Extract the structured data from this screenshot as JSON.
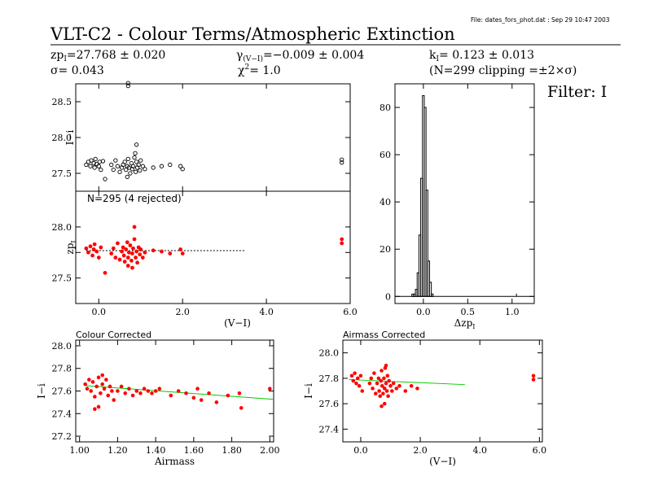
{
  "header": {
    "file_info": "File: dates_fors_phot.dat : Sep 29 10:47 2003",
    "title": "VLT-C2  -  Colour Terms/Atmospheric Extinction",
    "zp_label": "zp",
    "zp_sub": "I",
    "zp_value": "=27.768 ± 0.020",
    "gamma_label": "γ",
    "gamma_sub": "(V−I)",
    "gamma_value": "=−0.009 ± 0.004",
    "k_label": "k",
    "k_sub": "I",
    "k_value": "= 0.123 ± 0.013",
    "sigma_text": "σ= 0.043",
    "chi_label": "χ",
    "chi_sup": "2",
    "chi_value": "=  1.0",
    "clipping_text": "(N=299 clipping =±2×σ)",
    "filter_text": "Filter: I"
  },
  "colors": {
    "raw": "#000000",
    "highlight": "#ff0000",
    "fit": "#00cc00",
    "axis": "#000000"
  },
  "chart_data": [
    {
      "id": "raw",
      "type": "scatter",
      "ylabel": "I−i",
      "xlim": [
        -0.55,
        6.0
      ],
      "ylim": [
        27.25,
        28.75
      ],
      "yticks": [
        27.5,
        28.0,
        28.5
      ],
      "series": [
        {
          "values": [
            [
              -0.3,
              27.62
            ],
            [
              -0.25,
              27.66
            ],
            [
              -0.2,
              27.6
            ],
            [
              -0.18,
              27.68
            ],
            [
              -0.12,
              27.64
            ],
            [
              -0.1,
              27.58
            ],
            [
              -0.08,
              27.7
            ],
            [
              -0.05,
              27.63
            ],
            [
              0.0,
              27.6
            ],
            [
              0.02,
              27.66
            ],
            [
              0.05,
              27.55
            ],
            [
              0.1,
              27.67
            ],
            [
              0.3,
              27.62
            ],
            [
              0.35,
              27.55
            ],
            [
              0.4,
              27.68
            ],
            [
              0.45,
              27.6
            ],
            [
              0.5,
              27.52
            ],
            [
              0.55,
              27.58
            ],
            [
              0.58,
              27.62
            ],
            [
              0.62,
              27.66
            ],
            [
              0.65,
              27.55
            ],
            [
              0.68,
              27.6
            ],
            [
              0.7,
              27.7
            ],
            [
              0.72,
              27.58
            ],
            [
              0.75,
              27.5
            ],
            [
              0.78,
              27.64
            ],
            [
              0.8,
              27.56
            ],
            [
              0.82,
              27.6
            ],
            [
              0.85,
              27.72
            ],
            [
              0.88,
              27.52
            ],
            [
              0.9,
              27.66
            ],
            [
              0.92,
              27.58
            ],
            [
              0.95,
              27.62
            ],
            [
              0.98,
              27.54
            ],
            [
              1.0,
              27.68
            ],
            [
              1.05,
              27.6
            ],
            [
              1.1,
              27.56
            ],
            [
              1.3,
              27.58
            ],
            [
              1.5,
              27.6
            ],
            [
              1.7,
              27.62
            ],
            [
              1.95,
              27.6
            ],
            [
              2.0,
              27.56
            ],
            [
              0.15,
              27.42
            ],
            [
              0.68,
              27.45
            ],
            [
              0.9,
              27.9
            ],
            [
              0.87,
              27.78
            ],
            [
              5.8,
              27.65
            ],
            [
              5.8,
              27.69
            ],
            [
              0.7,
              28.72
            ],
            [
              0.7,
              28.76
            ]
          ]
        }
      ]
    },
    {
      "id": "zp",
      "type": "scatter",
      "annotation": "N=295 (4 rejected)",
      "ylabel": "zp",
      "ylabel_sub": "I",
      "xlabel": "(V−I)",
      "xlim": [
        -0.55,
        6.0
      ],
      "ylim": [
        27.25,
        28.35
      ],
      "yticks": [
        27.5,
        27.75,
        28.0
      ],
      "ytick_labels": [
        "27.5",
        "",
        "28.0"
      ],
      "xticks": [
        0.0,
        2.0,
        4.0,
        6.0
      ],
      "xtick_labels": [
        "0.0",
        "2.0",
        "4.0",
        "6.0"
      ],
      "fit_line": {
        "x": [
          -0.3,
          3.5
        ],
        "y": [
          27.768,
          27.768
        ]
      },
      "series": [
        {
          "values": [
            [
              -0.3,
              27.79
            ],
            [
              -0.25,
              27.75
            ],
            [
              -0.2,
              27.81
            ],
            [
              -0.15,
              27.72
            ],
            [
              -0.12,
              27.78
            ],
            [
              -0.1,
              27.83
            ],
            [
              -0.05,
              27.76
            ],
            [
              0.0,
              27.7
            ],
            [
              0.05,
              27.8
            ],
            [
              0.3,
              27.74
            ],
            [
              0.35,
              27.79
            ],
            [
              0.4,
              27.7
            ],
            [
              0.45,
              27.84
            ],
            [
              0.5,
              27.68
            ],
            [
              0.55,
              27.76
            ],
            [
              0.58,
              27.8
            ],
            [
              0.6,
              27.72
            ],
            [
              0.62,
              27.66
            ],
            [
              0.65,
              27.78
            ],
            [
              0.68,
              27.85
            ],
            [
              0.7,
              27.7
            ],
            [
              0.72,
              27.75
            ],
            [
              0.75,
              27.82
            ],
            [
              0.78,
              27.67
            ],
            [
              0.8,
              27.74
            ],
            [
              0.82,
              27.79
            ],
            [
              0.85,
              27.88
            ],
            [
              0.88,
              27.7
            ],
            [
              0.9,
              27.76
            ],
            [
              0.92,
              27.65
            ],
            [
              0.95,
              27.8
            ],
            [
              0.98,
              27.73
            ],
            [
              1.0,
              27.78
            ],
            [
              1.05,
              27.7
            ],
            [
              1.1,
              27.75
            ],
            [
              1.3,
              27.77
            ],
            [
              1.5,
              27.76
            ],
            [
              1.7,
              27.74
            ],
            [
              1.95,
              27.78
            ],
            [
              2.0,
              27.74
            ],
            [
              0.85,
              28.0
            ],
            [
              0.8,
              27.6
            ],
            [
              0.7,
              27.62
            ],
            [
              0.15,
              27.55
            ],
            [
              5.8,
              27.84
            ],
            [
              5.8,
              27.88
            ]
          ]
        }
      ]
    },
    {
      "id": "hist",
      "type": "histogram",
      "xlabel": "Δzp",
      "xlabel_sub": "I",
      "xlim": [
        -0.32,
        1.25
      ],
      "ylim": [
        -3,
        90
      ],
      "xticks": [
        0.0,
        0.5,
        1.0
      ],
      "xtick_labels": [
        "0.0",
        "0.5",
        "1.0"
      ],
      "yticks": [
        0,
        20,
        40,
        60,
        80
      ],
      "ytick_labels": [
        "0",
        "20",
        "40",
        "60",
        "80"
      ],
      "bin_width": 0.02,
      "bins": [
        [
          -0.12,
          1
        ],
        [
          -0.1,
          1
        ],
        [
          -0.08,
          3
        ],
        [
          -0.06,
          10
        ],
        [
          -0.04,
          26
        ],
        [
          -0.02,
          50
        ],
        [
          0.0,
          85
        ],
        [
          0.02,
          80
        ],
        [
          0.04,
          45
        ],
        [
          0.06,
          15
        ],
        [
          0.08,
          6
        ],
        [
          0.1,
          1
        ]
      ]
    },
    {
      "id": "colour_corrected",
      "type": "scatter",
      "title": "Colour Corrected",
      "ylabel": "I−i",
      "xlabel": "Airmass",
      "xlim": [
        0.98,
        2.02
      ],
      "ylim": [
        27.15,
        28.05
      ],
      "yticks": [
        27.2,
        27.4,
        27.6,
        27.8,
        28.0
      ],
      "ytick_labels": [
        "27.2",
        "27.4",
        "27.6",
        "27.8",
        "28.0"
      ],
      "xticks": [
        1.0,
        1.2,
        1.4,
        1.6,
        1.8,
        2.0
      ],
      "xtick_labels": [
        "1.00",
        "1.20",
        "1.40",
        "1.60",
        "1.80",
        "2.00"
      ],
      "fit_line": {
        "x": [
          1.03,
          2.02
        ],
        "y": [
          27.648,
          27.526
        ]
      },
      "series": [
        {
          "values": [
            [
              1.03,
              27.66
            ],
            [
              1.04,
              27.62
            ],
            [
              1.05,
              27.7
            ],
            [
              1.06,
              27.6
            ],
            [
              1.07,
              27.68
            ],
            [
              1.08,
              27.55
            ],
            [
              1.09,
              27.64
            ],
            [
              1.1,
              27.72
            ],
            [
              1.11,
              27.58
            ],
            [
              1.12,
              27.66
            ],
            [
              1.13,
              27.62
            ],
            [
              1.14,
              27.7
            ],
            [
              1.15,
              27.56
            ],
            [
              1.16,
              27.64
            ],
            [
              1.17,
              27.6
            ],
            [
              1.18,
              27.52
            ],
            [
              1.2,
              27.6
            ],
            [
              1.22,
              27.64
            ],
            [
              1.24,
              27.58
            ],
            [
              1.26,
              27.62
            ],
            [
              1.28,
              27.56
            ],
            [
              1.3,
              27.6
            ],
            [
              1.32,
              27.58
            ],
            [
              1.34,
              27.62
            ],
            [
              1.36,
              27.6
            ],
            [
              1.38,
              27.58
            ],
            [
              1.4,
              27.6
            ],
            [
              1.42,
              27.62
            ],
            [
              1.48,
              27.56
            ],
            [
              1.52,
              27.6
            ],
            [
              1.56,
              27.58
            ],
            [
              1.6,
              27.54
            ],
            [
              1.62,
              27.62
            ],
            [
              1.64,
              27.52
            ],
            [
              1.68,
              27.58
            ],
            [
              1.72,
              27.5
            ],
            [
              1.78,
              27.56
            ],
            [
              1.84,
              27.58
            ],
            [
              1.85,
              27.45
            ],
            [
              2.0,
              27.62
            ],
            [
              1.08,
              27.44
            ],
            [
              1.12,
              27.74
            ],
            [
              1.1,
              27.46
            ]
          ]
        }
      ]
    },
    {
      "id": "airmass_corrected",
      "type": "scatter",
      "title": "Airmass Corrected",
      "ylabel": "I−i",
      "xlabel": "(V−I)",
      "xlim": [
        -0.6,
        6.1
      ],
      "ylim": [
        27.3,
        28.1
      ],
      "yticks": [
        27.4,
        27.6,
        27.8,
        28.0
      ],
      "ytick_labels": [
        "27.4",
        "27.6",
        "27.8",
        "28.0"
      ],
      "xticks": [
        0.0,
        2.0,
        4.0,
        6.0
      ],
      "xtick_labels": [
        "0.0",
        "2.0",
        "4.0",
        "6.0"
      ],
      "fit_line": {
        "x": [
          -0.4,
          3.5
        ],
        "y": [
          27.79,
          27.75
        ]
      },
      "series": [
        {
          "values": [
            [
              -0.3,
              27.82
            ],
            [
              -0.25,
              27.78
            ],
            [
              -0.2,
              27.84
            ],
            [
              -0.15,
              27.76
            ],
            [
              -0.1,
              27.8
            ],
            [
              -0.05,
              27.74
            ],
            [
              0.0,
              27.82
            ],
            [
              0.05,
              27.7
            ],
            [
              0.3,
              27.76
            ],
            [
              0.35,
              27.8
            ],
            [
              0.4,
              27.72
            ],
            [
              0.45,
              27.84
            ],
            [
              0.5,
              27.68
            ],
            [
              0.55,
              27.76
            ],
            [
              0.6,
              27.8
            ],
            [
              0.62,
              27.7
            ],
            [
              0.65,
              27.66
            ],
            [
              0.68,
              27.78
            ],
            [
              0.7,
              27.86
            ],
            [
              0.72,
              27.74
            ],
            [
              0.75,
              27.68
            ],
            [
              0.78,
              27.8
            ],
            [
              0.8,
              27.72
            ],
            [
              0.82,
              27.88
            ],
            [
              0.85,
              27.76
            ],
            [
              0.88,
              27.7
            ],
            [
              0.9,
              27.82
            ],
            [
              0.92,
              27.66
            ],
            [
              0.95,
              27.78
            ],
            [
              1.0,
              27.74
            ],
            [
              1.05,
              27.7
            ],
            [
              1.1,
              27.76
            ],
            [
              1.2,
              27.72
            ],
            [
              1.3,
              27.74
            ],
            [
              1.5,
              27.7
            ],
            [
              1.7,
              27.74
            ],
            [
              1.9,
              27.72
            ],
            [
              0.8,
              27.6
            ],
            [
              0.7,
              27.58
            ],
            [
              0.85,
              27.9
            ],
            [
              5.8,
              27.79
            ],
            [
              5.8,
              27.82
            ]
          ]
        }
      ]
    }
  ]
}
